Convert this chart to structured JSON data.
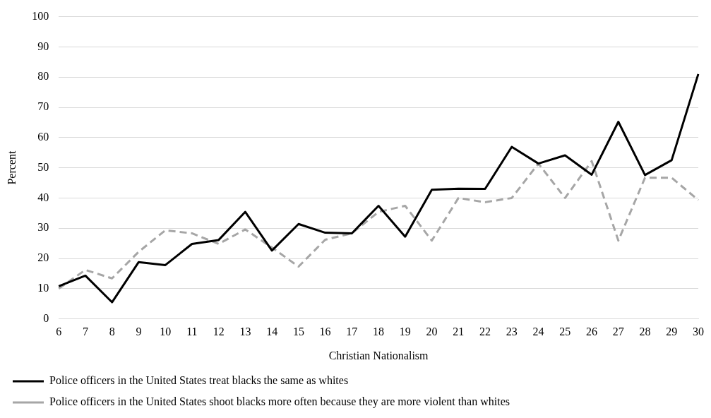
{
  "chart_data": {
    "type": "line",
    "xlabel": "Christian Nationalism",
    "ylabel": "Percent",
    "categories": [
      "6",
      "7",
      "8",
      "9",
      "10",
      "11",
      "12",
      "13",
      "14",
      "15",
      "16",
      "17",
      "18",
      "19",
      "20",
      "21",
      "22",
      "23",
      "24",
      "25",
      "26",
      "27",
      "28",
      "29",
      "30"
    ],
    "series": [
      {
        "name": "Police officers in the United States treat blacks the same as whites",
        "color": "#000000",
        "line_style": "solid",
        "values": [
          10.8,
          14.3,
          5.5,
          18.8,
          17.8,
          24.8,
          26.1,
          35.4,
          22.6,
          31.4,
          28.5,
          28.3,
          37.4,
          27.2,
          42.7,
          43.1,
          43.0,
          56.9,
          51.4,
          54.1,
          47.7,
          65.2,
          47.6,
          52.5,
          81.0
        ]
      },
      {
        "name": "Police officers in the United States shoot blacks more often because they are more violent than whites",
        "color": "#a6a6a6",
        "line_style": "dashed",
        "values": [
          10.0,
          16.2,
          13.4,
          22.2,
          29.3,
          28.3,
          24.8,
          29.6,
          23.6,
          17.3,
          26.2,
          28.3,
          35.4,
          37.4,
          25.9,
          40.0,
          38.6,
          40.0,
          51.4,
          40.0,
          52.2,
          25.9,
          46.7,
          46.7,
          39.3
        ]
      }
    ],
    "ylim": [
      0,
      100
    ],
    "yticks": [
      0,
      10,
      20,
      30,
      40,
      50,
      60,
      70,
      80,
      90,
      100
    ],
    "grid": "y",
    "legend": "bottom",
    "marker": "none"
  }
}
